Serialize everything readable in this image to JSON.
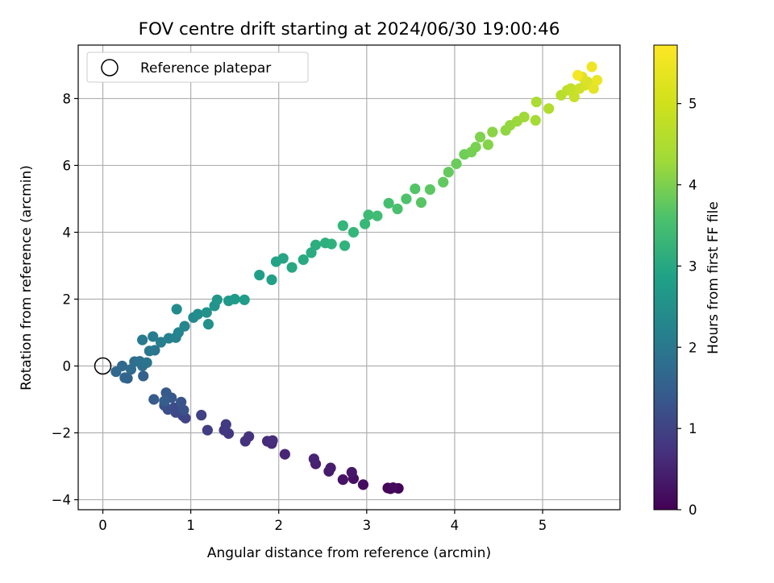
{
  "chart_data": {
    "type": "scatter",
    "title": "FOV centre drift starting at 2024/06/30 19:00:46",
    "xlabel": "Angular distance from reference (arcmin)",
    "ylabel": "Rotation from reference (arcmin)",
    "xlim": [
      -0.28,
      5.88
    ],
    "ylim": [
      -4.3,
      9.6
    ],
    "xticks": [
      0,
      1,
      2,
      3,
      4,
      5
    ],
    "yticks": [
      -4,
      -2,
      0,
      2,
      4,
      6,
      8
    ],
    "grid": true,
    "legend": {
      "position": "top-left",
      "entries": [
        "Reference platepar"
      ]
    },
    "reference_point": {
      "x": 0.0,
      "y": 0.0
    },
    "colorbar": {
      "label": "Hours from first FF file",
      "min": 0,
      "max": 5.72,
      "ticks": [
        0,
        1,
        2,
        3,
        4,
        5
      ],
      "colormap": "viridis"
    },
    "series": [
      {
        "points": [
          [
            3.27,
            -3.67,
            0.0
          ],
          [
            3.36,
            -3.66,
            0.05
          ],
          [
            3.24,
            -3.65,
            0.1
          ],
          [
            3.3,
            -3.64,
            0.15
          ],
          [
            2.96,
            -3.55,
            0.2
          ],
          [
            2.85,
            -3.37,
            0.25
          ],
          [
            2.73,
            -3.4,
            0.3
          ],
          [
            2.83,
            -3.18,
            0.35
          ],
          [
            2.57,
            -3.15,
            0.4
          ],
          [
            2.59,
            -3.05,
            0.45
          ],
          [
            2.42,
            -2.93,
            0.5
          ],
          [
            2.4,
            -2.78,
            0.55
          ],
          [
            2.07,
            -2.64,
            0.6
          ],
          [
            1.92,
            -2.32,
            0.65
          ],
          [
            1.87,
            -2.25,
            0.7
          ],
          [
            1.93,
            -2.23,
            0.75
          ],
          [
            1.62,
            -2.25,
            0.8
          ],
          [
            1.66,
            -2.11,
            0.85
          ],
          [
            1.43,
            -2.02,
            0.9
          ],
          [
            1.38,
            -1.92,
            0.95
          ],
          [
            1.4,
            -1.75,
            1.0
          ],
          [
            1.19,
            -1.92,
            1.05
          ],
          [
            1.12,
            -1.47,
            1.1
          ],
          [
            0.94,
            -1.56,
            1.15
          ],
          [
            0.91,
            -1.49,
            1.2
          ],
          [
            0.83,
            -1.39,
            1.25
          ],
          [
            0.81,
            -1.25,
            1.3
          ],
          [
            0.74,
            -1.3,
            1.35
          ],
          [
            0.7,
            -1.18,
            1.4
          ],
          [
            0.92,
            -1.32,
            1.45
          ],
          [
            0.89,
            -1.08,
            1.5
          ],
          [
            0.78,
            -0.95,
            1.55
          ],
          [
            0.72,
            -0.8,
            1.6
          ],
          [
            0.58,
            -1.0,
            1.65
          ],
          [
            0.7,
            -1.05,
            1.7
          ],
          [
            0.46,
            -0.3,
            1.75
          ],
          [
            0.28,
            -0.37,
            1.8
          ],
          [
            0.25,
            -0.35,
            1.85
          ],
          [
            0.15,
            -0.17,
            1.9
          ],
          [
            0.22,
            0.0,
            1.95
          ],
          [
            0.32,
            -0.1,
            2.0
          ],
          [
            0.36,
            0.13,
            2.05
          ],
          [
            0.45,
            0.0,
            2.1
          ],
          [
            0.42,
            0.14,
            2.15
          ],
          [
            0.5,
            0.1,
            2.2
          ],
          [
            0.59,
            0.47,
            2.25
          ],
          [
            0.53,
            0.45,
            2.3
          ],
          [
            0.45,
            0.78,
            2.35
          ],
          [
            0.57,
            0.88,
            2.4
          ],
          [
            0.66,
            0.71,
            2.45
          ],
          [
            0.75,
            0.83,
            2.5
          ],
          [
            0.83,
            0.85,
            2.55
          ],
          [
            0.86,
            1.0,
            2.6
          ],
          [
            0.93,
            1.19,
            2.65
          ],
          [
            1.03,
            1.45,
            2.7
          ],
          [
            0.84,
            1.7,
            2.75
          ],
          [
            1.08,
            1.55,
            2.8
          ],
          [
            1.2,
            1.25,
            2.85
          ],
          [
            1.18,
            1.6,
            2.9
          ],
          [
            1.27,
            1.8,
            2.95
          ],
          [
            1.3,
            1.98,
            3.0
          ],
          [
            1.43,
            1.95,
            3.05
          ],
          [
            1.5,
            2.0,
            3.1
          ],
          [
            1.61,
            1.98,
            3.15
          ],
          [
            1.78,
            2.72,
            3.2
          ],
          [
            1.92,
            2.58,
            3.25
          ],
          [
            1.97,
            3.12,
            3.3
          ],
          [
            2.05,
            3.22,
            3.35
          ],
          [
            2.15,
            2.95,
            3.4
          ],
          [
            2.28,
            3.18,
            3.45
          ],
          [
            2.37,
            3.39,
            3.5
          ],
          [
            2.42,
            3.62,
            3.55
          ],
          [
            2.53,
            3.68,
            3.6
          ],
          [
            2.6,
            3.65,
            3.65
          ],
          [
            2.75,
            3.6,
            3.7
          ],
          [
            2.73,
            4.2,
            3.75
          ],
          [
            2.85,
            4.0,
            3.8
          ],
          [
            2.98,
            4.25,
            3.85
          ],
          [
            3.02,
            4.52,
            3.9
          ],
          [
            3.12,
            4.49,
            3.95
          ],
          [
            3.25,
            4.87,
            4.0
          ],
          [
            3.35,
            4.7,
            4.05
          ],
          [
            3.45,
            5.0,
            4.1
          ],
          [
            3.55,
            5.3,
            4.15
          ],
          [
            3.62,
            4.89,
            4.2
          ],
          [
            3.72,
            5.28,
            4.25
          ],
          [
            3.87,
            5.5,
            4.3
          ],
          [
            3.93,
            5.8,
            4.35
          ],
          [
            4.02,
            6.05,
            4.4
          ],
          [
            4.11,
            6.33,
            4.45
          ],
          [
            4.19,
            6.4,
            4.5
          ],
          [
            4.24,
            6.55,
            4.55
          ],
          [
            4.29,
            6.85,
            4.6
          ],
          [
            4.38,
            6.62,
            4.65
          ],
          [
            4.43,
            7.0,
            4.7
          ],
          [
            4.58,
            7.05,
            4.75
          ],
          [
            4.63,
            7.2,
            4.8
          ],
          [
            4.71,
            7.32,
            4.85
          ],
          [
            4.79,
            7.45,
            4.9
          ],
          [
            4.92,
            7.35,
            4.95
          ],
          [
            4.93,
            7.9,
            5.0
          ],
          [
            5.07,
            7.7,
            5.05
          ],
          [
            5.21,
            8.1,
            5.1
          ],
          [
            5.28,
            8.25,
            5.15
          ],
          [
            5.32,
            8.3,
            5.2
          ],
          [
            5.36,
            8.05,
            5.25
          ],
          [
            5.42,
            8.3,
            5.3
          ],
          [
            5.48,
            8.4,
            5.35
          ],
          [
            5.51,
            8.5,
            5.4
          ],
          [
            5.45,
            8.65,
            5.45
          ],
          [
            5.58,
            8.3,
            5.5
          ],
          [
            5.62,
            8.55,
            5.55
          ],
          [
            5.56,
            8.95,
            5.6
          ],
          [
            5.4,
            8.7,
            5.65
          ]
        ]
      }
    ]
  }
}
